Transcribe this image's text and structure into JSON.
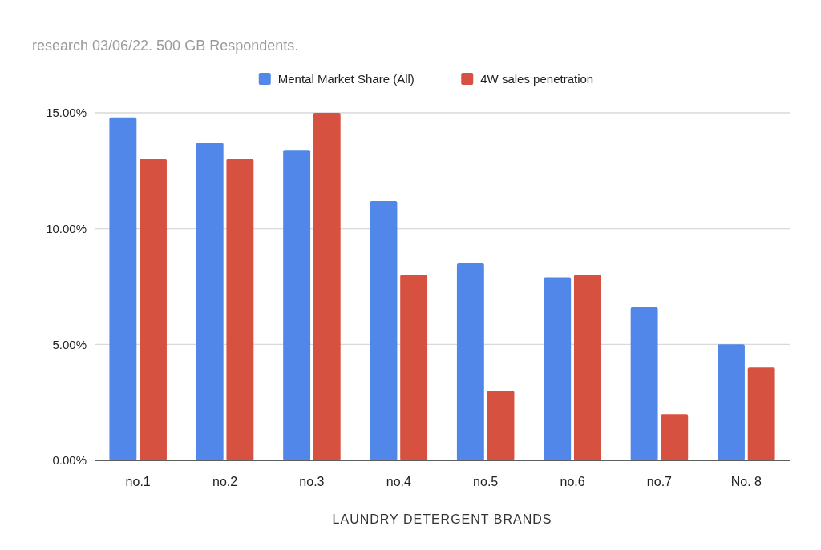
{
  "chart_data": {
    "type": "bar",
    "title": "research 03/06/22.   500 GB Respondents.",
    "xlabel": "LAUNDRY DETERGENT BRANDS",
    "categories": [
      "no.1",
      "no.2",
      "no.3",
      "no.4",
      "no.5",
      "no.6",
      "no.7",
      "No. 8"
    ],
    "series": [
      {
        "name": "Mental Market Share (All)",
        "color": "#5087e8",
        "values": [
          14.8,
          13.7,
          13.4,
          11.2,
          8.5,
          7.9,
          6.6,
          5.0
        ]
      },
      {
        "name": "4W sales penetration",
        "color": "#d75140",
        "values": [
          13,
          13,
          15,
          8,
          3,
          8,
          2,
          4
        ]
      }
    ],
    "ylim": [
      0,
      15
    ],
    "yticks": [
      {
        "value": 0,
        "label": "0.00%"
      },
      {
        "value": 5,
        "label": "5.00%"
      },
      {
        "value": 10,
        "label": "10.00%"
      },
      {
        "value": 15,
        "label": "15.00%"
      }
    ],
    "grid": "y",
    "legend": "top"
  }
}
